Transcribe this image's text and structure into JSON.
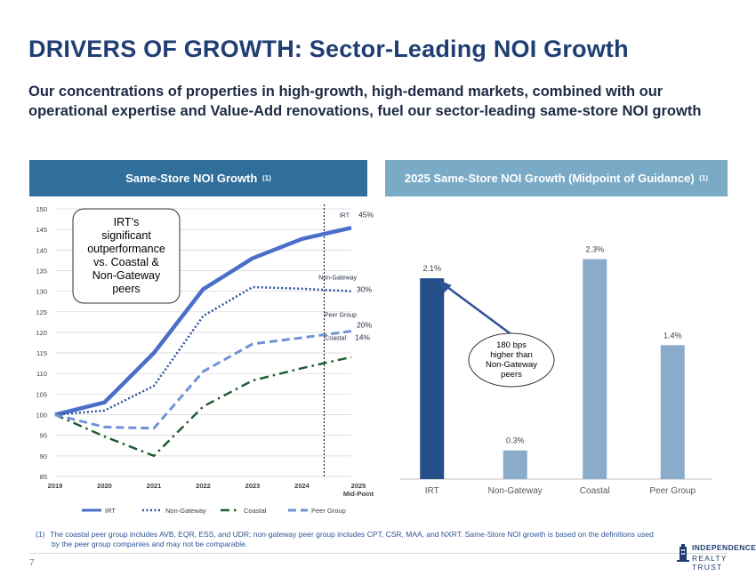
{
  "title": "DRIVERS OF GROWTH: Sector-Leading NOI Growth",
  "subtitle": "Our concentrations of properties in high-growth, high-demand markets, combined with our operational expertise and Value-Add renovations, fuel our sector-leading same-store NOI growth",
  "left_header": "Same-Store NOI Growth",
  "left_header_note": "(1)",
  "right_header": "2025 Same-Store NOI Growth (Midpoint of Guidance)",
  "right_header_note": "(1)",
  "callout_left": "IRT’s significant outperformance vs. Coastal & Non-Gateway peers",
  "callout_right": "180 bps higher than Non-Gateway peers",
  "footnote": {
    "marker": "(1)",
    "line1": "The coastal peer group includes AVB, EQR, ESS, and UDR; non-gateway peer group includes CPT, CSR, MAA, and NXRT. Same-Store NOI growth is based on the definitions used",
    "line2": "by the peer group companies and may not be comparable."
  },
  "page_number": "7",
  "logo": {
    "line1": "INDEPENDENCE",
    "line2": "REALTY TRUST"
  },
  "colors": {
    "irt": "#4a6fc9",
    "non_gateway": "#2a52a0",
    "coastal": "#1e5d32",
    "peer": "#6f93d6",
    "bar_irt": "#244f88",
    "bar_other": "#8aaccb",
    "header_left": "#2f6f9a",
    "header_right": "#79aac6"
  },
  "chart_data": [
    {
      "type": "line",
      "title": "Same-Store NOI Growth (1)",
      "x": [
        "2019",
        "2020",
        "2021",
        "2022",
        "2023",
        "2024",
        "2025 Mid-Point"
      ],
      "ylim": [
        85,
        150
      ],
      "yticks": [
        85,
        90,
        95,
        100,
        105,
        110,
        115,
        120,
        125,
        130,
        135,
        140,
        145,
        150
      ],
      "series": [
        {
          "name": "IRT",
          "values": [
            100,
            103,
            115,
            130.5,
            138,
            142.7,
            145.4
          ],
          "end_label_name": "IRT",
          "end_label_value": "45%"
        },
        {
          "name": "Non-Gateway",
          "values": [
            100,
            101,
            107,
            124,
            131,
            130.6,
            130
          ],
          "end_label_name": "Non-Gateway",
          "end_label_value": "30%"
        },
        {
          "name": "Coastal",
          "values": [
            100,
            94.7,
            90,
            102,
            108.3,
            111.3,
            114
          ],
          "end_label_name": "Coastal",
          "end_label_value": "14%"
        },
        {
          "name": "Peer Group",
          "values": [
            100,
            97,
            96.7,
            110.5,
            117.2,
            118.7,
            120.3
          ],
          "end_label_name": "Peer Group",
          "end_label_value": "20%"
        }
      ],
      "legend": [
        "IRT",
        "Non-Gateway",
        "Coastal",
        "Peer Group"
      ],
      "legend_position": "bottom"
    },
    {
      "type": "bar",
      "title": "2025 Same-Store NOI Growth (Midpoint of Guidance) (1)",
      "categories": [
        "IRT",
        "Non-Gateway",
        "Coastal",
        "Peer Group"
      ],
      "values": [
        2.1,
        0.3,
        2.3,
        1.4
      ],
      "labels": [
        "2.1%",
        "0.3%",
        "2.3%",
        "1.4%"
      ],
      "ylim": [
        0,
        2.5
      ]
    }
  ]
}
